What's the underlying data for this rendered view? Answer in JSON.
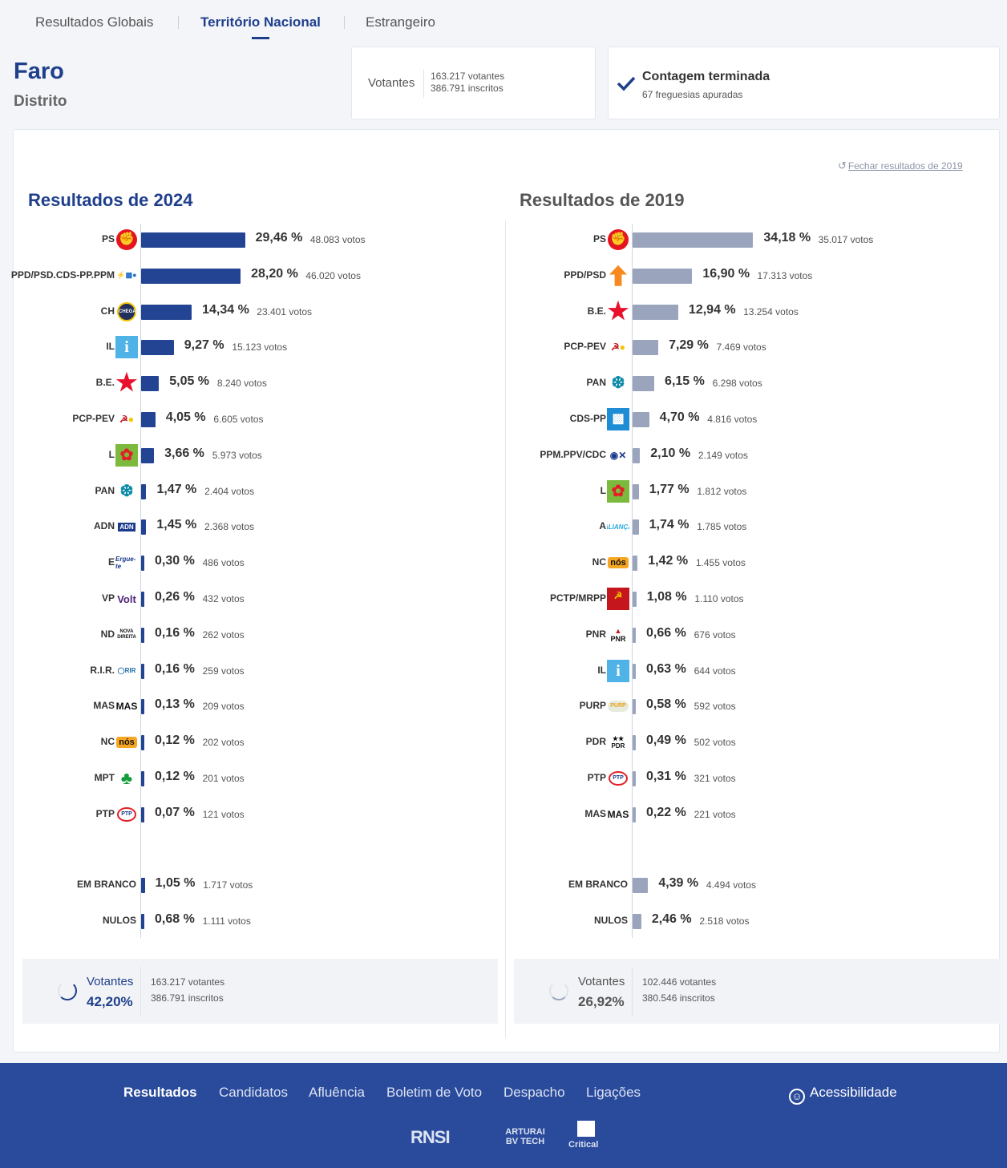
{
  "tabs": [
    {
      "label": "Resultados Globais"
    },
    {
      "label": "Território Nacional"
    },
    {
      "label": "Estrangeiro"
    }
  ],
  "header": {
    "region": "Faro",
    "region_type": "Distrito",
    "voters_label": "Votantes",
    "voters": "163.217 votantes",
    "registered": "386.791 inscritos",
    "count_status": "Contagem terminada",
    "count_detail": "67 freguesias apuradas"
  },
  "close_link": "Fechar resultados de 2019",
  "r2024": {
    "title": "Resultados de 2024",
    "parties": [
      {
        "label": "PS",
        "pct": "29,46 %",
        "votes": "48.083 votos",
        "value": 29.46,
        "logo": "ps-logo"
      },
      {
        "label": "PPD/PSD.CDS-PP.PPM",
        "pct": "28,20 %",
        "votes": "46.020 votos",
        "value": 28.2,
        "logo": "ad-logo"
      },
      {
        "label": "CH",
        "pct": "14,34 %",
        "votes": "23.401 votos",
        "value": 14.34,
        "logo": "chega-logo"
      },
      {
        "label": "IL",
        "pct": "9,27 %",
        "votes": "15.123 votos",
        "value": 9.27,
        "logo": "il-logo"
      },
      {
        "label": "B.E.",
        "pct": "5,05 %",
        "votes": "8.240 votos",
        "value": 5.05,
        "logo": "be-logo"
      },
      {
        "label": "PCP-PEV",
        "pct": "4,05 %",
        "votes": "6.605 votos",
        "value": 4.05,
        "logo": "cdu-logo"
      },
      {
        "label": "L",
        "pct": "3,66 %",
        "votes": "5.973 votos",
        "value": 3.66,
        "logo": "livre-logo"
      },
      {
        "label": "PAN",
        "pct": "1,47 %",
        "votes": "2.404 votos",
        "value": 1.47,
        "logo": "pan-logo"
      },
      {
        "label": "ADN",
        "pct": "1,45 %",
        "votes": "2.368 votos",
        "value": 1.45,
        "logo": "adn-logo"
      },
      {
        "label": "E",
        "pct": "0,30 %",
        "votes": "486 votos",
        "value": 0.3,
        "logo": "ergue-te-logo"
      },
      {
        "label": "VP",
        "pct": "0,26 %",
        "votes": "432 votos",
        "value": 0.26,
        "logo": "volt-logo"
      },
      {
        "label": "ND",
        "pct": "0,16 %",
        "votes": "262 votos",
        "value": 0.16,
        "logo": "nova-direita-logo"
      },
      {
        "label": "R.I.R.",
        "pct": "0,16 %",
        "votes": "259 votos",
        "value": 0.16,
        "logo": "rir-logo"
      },
      {
        "label": "MAS",
        "pct": "0,13 %",
        "votes": "209 votos",
        "value": 0.13,
        "logo": "mas-logo"
      },
      {
        "label": "NC",
        "pct": "0,12 %",
        "votes": "202 votos",
        "value": 0.12,
        "logo": "nos-logo"
      },
      {
        "label": "MPT",
        "pct": "0,12 %",
        "votes": "201 votos",
        "value": 0.12,
        "logo": "mpt-logo"
      },
      {
        "label": "PTP",
        "pct": "0,07 %",
        "votes": "121 votos",
        "value": 0.07,
        "logo": "ptp-logo"
      }
    ],
    "blank": {
      "label": "EM BRANCO",
      "pct": "1,05 %",
      "votes": "1.717 votos",
      "value": 1.05
    },
    "null": {
      "label": "NULOS",
      "pct": "0,68 %",
      "votes": "1.111 votos",
      "value": 0.68
    },
    "summary": {
      "label": "Votantes",
      "pct": "42,20%",
      "voters": "163.217 votantes",
      "registered": "386.791 inscritos"
    }
  },
  "r2019": {
    "title": "Resultados de 2019",
    "parties": [
      {
        "label": "PS",
        "pct": "34,18 %",
        "votes": "35.017 votos",
        "value": 34.18,
        "logo": "ps-logo"
      },
      {
        "label": "PPD/PSD",
        "pct": "16,90 %",
        "votes": "17.313 votos",
        "value": 16.9,
        "logo": "psd-logo"
      },
      {
        "label": "B.E.",
        "pct": "12,94 %",
        "votes": "13.254 votos",
        "value": 12.94,
        "logo": "be-logo"
      },
      {
        "label": "PCP-PEV",
        "pct": "7,29 %",
        "votes": "7.469 votos",
        "value": 7.29,
        "logo": "cdu-logo"
      },
      {
        "label": "PAN",
        "pct": "6,15 %",
        "votes": "6.298 votos",
        "value": 6.15,
        "logo": "pan-logo"
      },
      {
        "label": "CDS-PP",
        "pct": "4,70 %",
        "votes": "4.816 votos",
        "value": 4.7,
        "logo": "cds-logo"
      },
      {
        "label": "PPM.PPV/CDC",
        "pct": "2,10 %",
        "votes": "2.149 votos",
        "value": 2.1,
        "logo": "ppm-logo"
      },
      {
        "label": "L",
        "pct": "1,77 %",
        "votes": "1.812 votos",
        "value": 1.77,
        "logo": "livre-logo"
      },
      {
        "label": "A",
        "pct": "1,74 %",
        "votes": "1.785 votos",
        "value": 1.74,
        "logo": "alianca-logo"
      },
      {
        "label": "NC",
        "pct": "1,42 %",
        "votes": "1.455 votos",
        "value": 1.42,
        "logo": "nos-logo"
      },
      {
        "label": "PCTP/MRPP",
        "pct": "1,08 %",
        "votes": "1.110 votos",
        "value": 1.08,
        "logo": "pctp-logo"
      },
      {
        "label": "PNR",
        "pct": "0,66 %",
        "votes": "676 votos",
        "value": 0.66,
        "logo": "pnr-logo"
      },
      {
        "label": "IL",
        "pct": "0,63 %",
        "votes": "644 votos",
        "value": 0.63,
        "logo": "il-logo"
      },
      {
        "label": "PURP",
        "pct": "0,58 %",
        "votes": "592 votos",
        "value": 0.58,
        "logo": "purp-logo"
      },
      {
        "label": "PDR",
        "pct": "0,49 %",
        "votes": "502 votos",
        "value": 0.49,
        "logo": "pdr-logo"
      },
      {
        "label": "PTP",
        "pct": "0,31 %",
        "votes": "321 votos",
        "value": 0.31,
        "logo": "ptp-logo"
      },
      {
        "label": "MAS",
        "pct": "0,22 %",
        "votes": "221 votos",
        "value": 0.22,
        "logo": "mas-logo"
      }
    ],
    "blank": {
      "label": "EM BRANCO",
      "pct": "4,39 %",
      "votes": "4.494 votos",
      "value": 4.39
    },
    "null": {
      "label": "NULOS",
      "pct": "2,46 %",
      "votes": "2.518 votos",
      "value": 2.46
    },
    "summary": {
      "label": "Votantes",
      "pct": "26,92%",
      "voters": "102.446 votantes",
      "registered": "380.546 inscritos"
    }
  },
  "footer": {
    "nav": [
      "Resultados",
      "Candidatos",
      "Afluência",
      "Boletim de Voto",
      "Despacho",
      "Ligações"
    ],
    "accessibility": "Acessibilidade",
    "logos": [
      "RNSI",
      "ARTURAI BV TECH",
      "Critical"
    ]
  },
  "colors": {
    "brand": "#1f3f8c",
    "bar_2024": "#234492",
    "bar_2019": "#9aa5bd",
    "footer_bg": "#2a4a9b"
  }
}
